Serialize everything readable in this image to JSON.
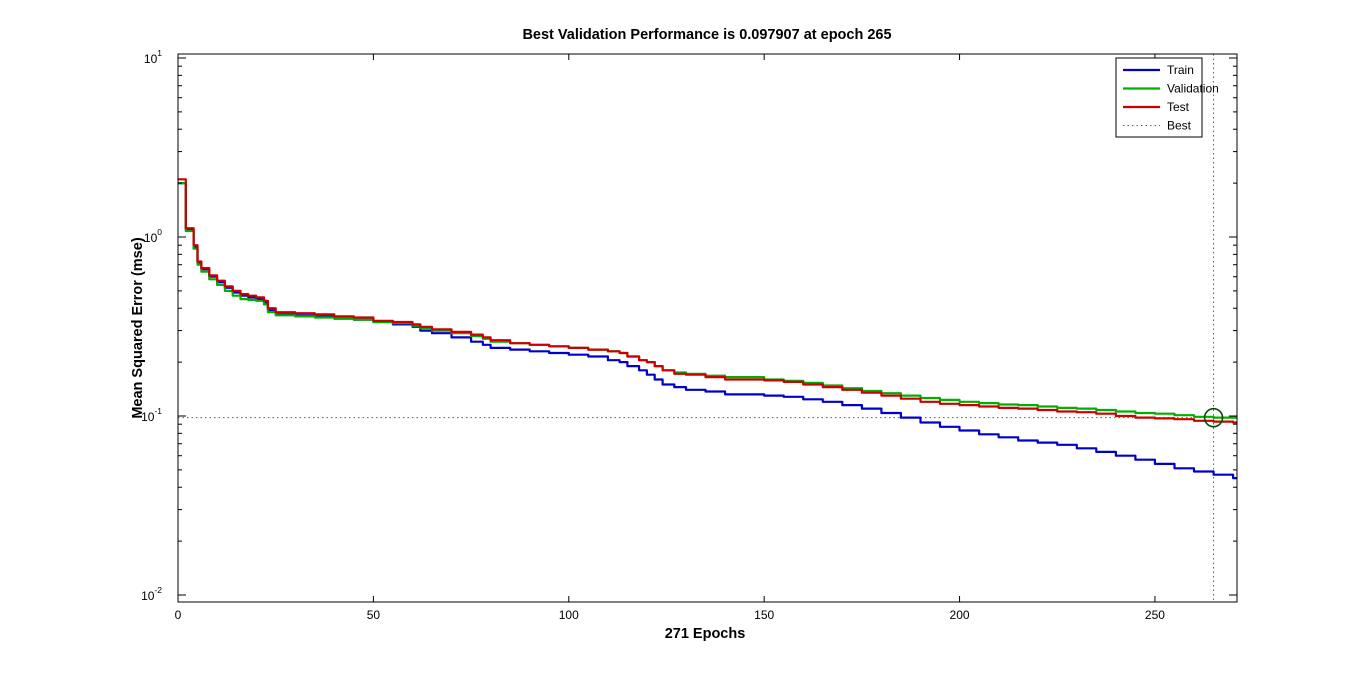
{
  "chart_data": {
    "type": "line",
    "title": "Best Validation Performance is 0.097907 at epoch 265",
    "xlabel": "271 Epochs",
    "ylabel": "Mean Squared Error  (mse)",
    "xlim": [
      0,
      271
    ],
    "ylim": [
      0.01,
      10
    ],
    "yscale": "log",
    "grid": false,
    "legend_position": "top-right",
    "x_ticks": [
      0,
      50,
      100,
      150,
      200,
      250
    ],
    "x_tick_labels": [
      "0",
      "50",
      "100",
      "150",
      "200",
      "250"
    ],
    "y_ticks": [
      {
        "value": 10,
        "base": "10",
        "exp": "1"
      },
      {
        "value": 1,
        "base": "10",
        "exp": "0"
      },
      {
        "value": 0.1,
        "base": "10",
        "exp": "-1"
      },
      {
        "value": 0.01,
        "base": "10",
        "exp": "-2"
      }
    ],
    "best": {
      "epoch": 265,
      "value": 0.097907,
      "label": "Best",
      "color": "#00a000"
    },
    "series": [
      {
        "name": "Train",
        "color": "#0000cc",
        "x": [
          0,
          2,
          4,
          5,
          6,
          8,
          10,
          12,
          14,
          16,
          18,
          20,
          22,
          23,
          25,
          30,
          35,
          40,
          45,
          50,
          55,
          60,
          62,
          65,
          70,
          75,
          78,
          80,
          85,
          90,
          95,
          100,
          105,
          110,
          113,
          115,
          118,
          120,
          122,
          124,
          127,
          130,
          135,
          140,
          150,
          155,
          160,
          165,
          170,
          175,
          180,
          185,
          190,
          195,
          200,
          205,
          210,
          215,
          220,
          225,
          230,
          235,
          240,
          245,
          250,
          255,
          260,
          265,
          270,
          271
        ],
        "y": [
          2.0,
          1.1,
          0.88,
          0.72,
          0.66,
          0.6,
          0.56,
          0.52,
          0.49,
          0.47,
          0.46,
          0.45,
          0.43,
          0.39,
          0.37,
          0.365,
          0.36,
          0.35,
          0.345,
          0.335,
          0.325,
          0.315,
          0.3,
          0.29,
          0.275,
          0.26,
          0.25,
          0.24,
          0.235,
          0.23,
          0.225,
          0.22,
          0.215,
          0.205,
          0.2,
          0.19,
          0.18,
          0.17,
          0.16,
          0.15,
          0.145,
          0.14,
          0.137,
          0.132,
          0.13,
          0.128,
          0.124,
          0.12,
          0.115,
          0.11,
          0.104,
          0.098,
          0.092,
          0.087,
          0.083,
          0.079,
          0.076,
          0.073,
          0.071,
          0.069,
          0.066,
          0.063,
          0.06,
          0.057,
          0.054,
          0.051,
          0.049,
          0.047,
          0.045,
          0.045
        ]
      },
      {
        "name": "Validation",
        "color": "#00b000",
        "x": [
          0,
          2,
          4,
          5,
          6,
          8,
          10,
          12,
          14,
          16,
          18,
          20,
          22,
          23,
          25,
          30,
          35,
          40,
          45,
          50,
          55,
          60,
          62,
          65,
          70,
          75,
          78,
          80,
          85,
          90,
          95,
          100,
          105,
          110,
          113,
          115,
          118,
          120,
          122,
          124,
          127,
          130,
          135,
          140,
          150,
          155,
          160,
          165,
          170,
          175,
          180,
          185,
          190,
          195,
          200,
          205,
          210,
          215,
          220,
          225,
          230,
          235,
          240,
          245,
          250,
          255,
          260,
          265,
          270,
          271
        ],
        "y": [
          2.0,
          1.08,
          0.86,
          0.7,
          0.64,
          0.58,
          0.54,
          0.5,
          0.47,
          0.45,
          0.445,
          0.44,
          0.42,
          0.38,
          0.365,
          0.36,
          0.355,
          0.35,
          0.345,
          0.335,
          0.33,
          0.32,
          0.31,
          0.3,
          0.29,
          0.28,
          0.27,
          0.26,
          0.255,
          0.25,
          0.245,
          0.24,
          0.235,
          0.23,
          0.225,
          0.215,
          0.205,
          0.2,
          0.19,
          0.18,
          0.175,
          0.172,
          0.168,
          0.165,
          0.16,
          0.157,
          0.153,
          0.148,
          0.143,
          0.138,
          0.134,
          0.13,
          0.126,
          0.123,
          0.12,
          0.118,
          0.116,
          0.115,
          0.113,
          0.111,
          0.11,
          0.108,
          0.106,
          0.104,
          0.103,
          0.101,
          0.099,
          0.0979,
          0.098,
          0.098
        ]
      },
      {
        "name": "Test",
        "color": "#cc0000",
        "x": [
          0,
          2,
          4,
          5,
          6,
          8,
          10,
          12,
          14,
          16,
          18,
          20,
          22,
          23,
          25,
          30,
          35,
          40,
          45,
          50,
          55,
          60,
          62,
          65,
          70,
          75,
          78,
          80,
          85,
          90,
          95,
          100,
          105,
          110,
          113,
          115,
          118,
          120,
          122,
          124,
          127,
          130,
          135,
          140,
          150,
          155,
          160,
          165,
          170,
          175,
          180,
          185,
          190,
          195,
          200,
          205,
          210,
          215,
          220,
          225,
          230,
          235,
          240,
          245,
          250,
          255,
          260,
          265,
          270,
          271
        ],
        "y": [
          2.1,
          1.12,
          0.9,
          0.73,
          0.67,
          0.61,
          0.57,
          0.53,
          0.5,
          0.48,
          0.47,
          0.46,
          0.44,
          0.4,
          0.38,
          0.375,
          0.37,
          0.36,
          0.355,
          0.34,
          0.335,
          0.325,
          0.315,
          0.305,
          0.295,
          0.285,
          0.275,
          0.265,
          0.255,
          0.25,
          0.245,
          0.24,
          0.235,
          0.23,
          0.225,
          0.215,
          0.205,
          0.2,
          0.19,
          0.18,
          0.172,
          0.17,
          0.165,
          0.16,
          0.158,
          0.155,
          0.15,
          0.145,
          0.14,
          0.135,
          0.13,
          0.125,
          0.12,
          0.117,
          0.115,
          0.113,
          0.111,
          0.11,
          0.108,
          0.106,
          0.105,
          0.103,
          0.1,
          0.098,
          0.097,
          0.096,
          0.094,
          0.093,
          0.092,
          0.092
        ]
      }
    ]
  }
}
